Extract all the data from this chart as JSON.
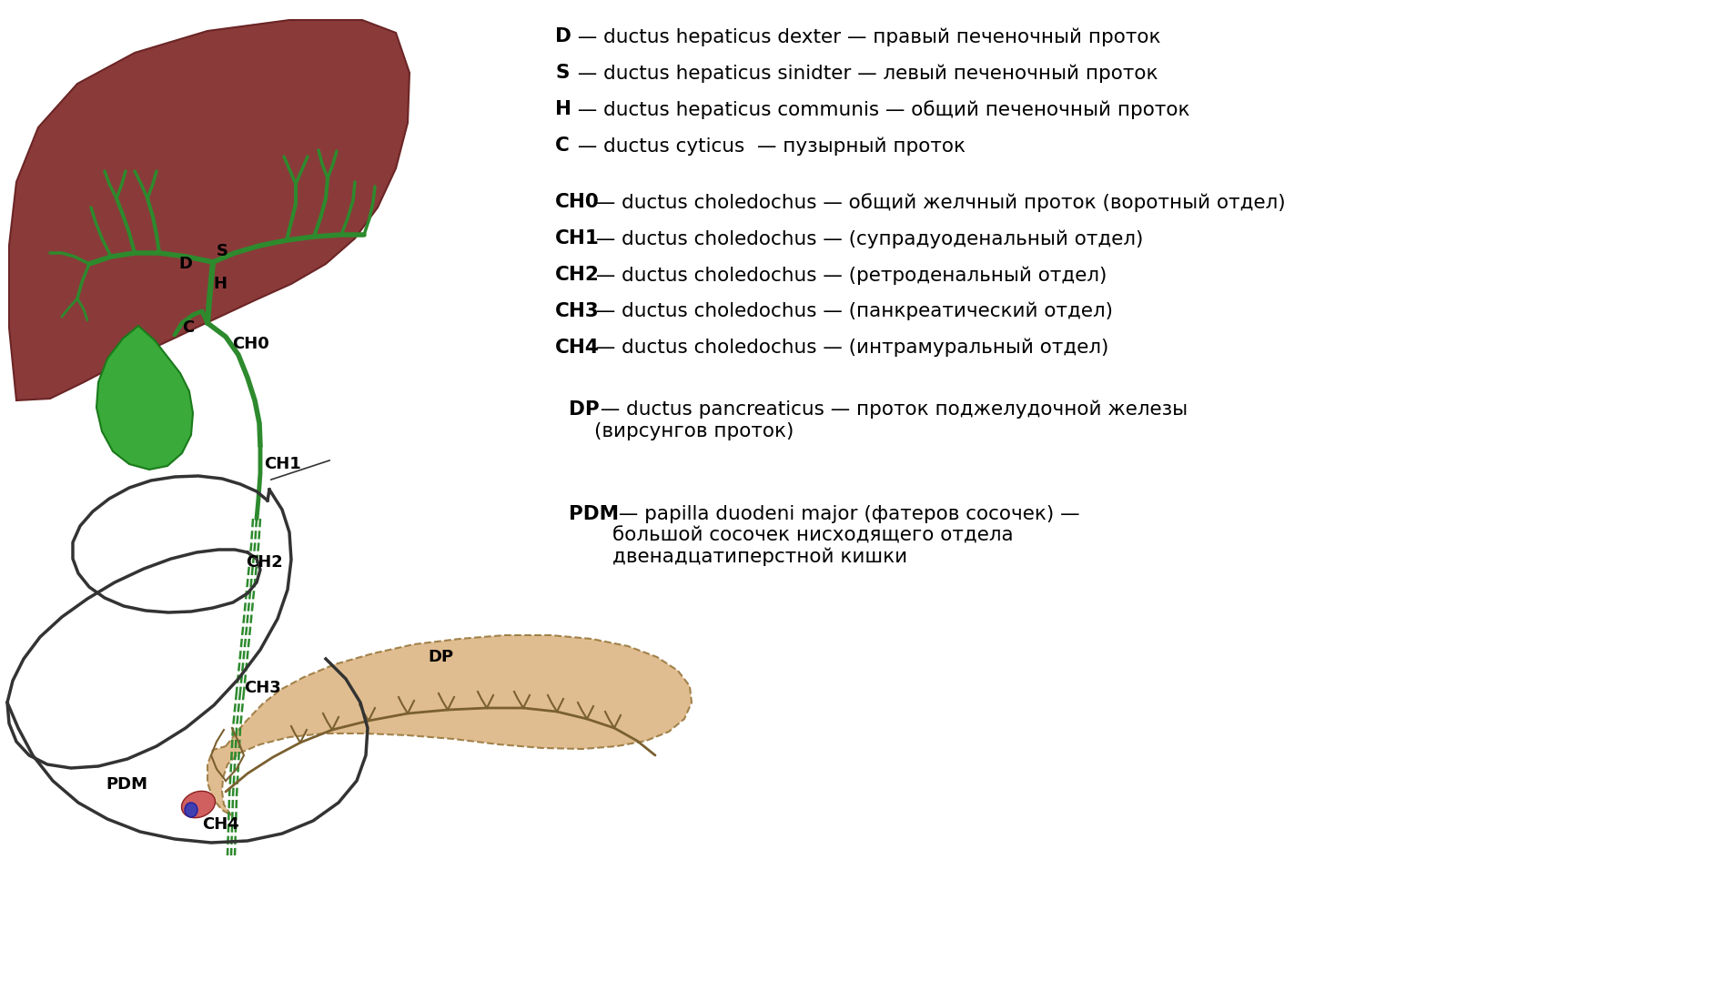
{
  "bg_color": "#ffffff",
  "liver_color": "#8B3A3A",
  "liver_edge": "#6b2525",
  "bile_duct_color": "#2d8a2d",
  "gallbladder_color": "#3aaa3a",
  "gallbladder_edge": "#1a7a1a",
  "pancreas_color": "#DEB887",
  "pancreas_edge": "#9B7A40",
  "pdm_red": "#d06060",
  "pdm_blue": "#4040b0",
  "label_color": "#000000",
  "duod_color": "#333333",
  "legend_lines": [
    {
      "bold": "D",
      "text": " — ductus hepaticus dexter — правый печеночный проток"
    },
    {
      "bold": "S",
      "text": " — ductus hepaticus sinidter — левый печеночный проток"
    },
    {
      "bold": "H",
      "text": " — ductus hepaticus communis — общий печеночный проток"
    },
    {
      "bold": "C",
      "text": " — ductus cyticus  — пузырный проток"
    }
  ],
  "legend_lines2": [
    {
      "bold": "CH0",
      "text": " — ductus choledochus — общий желчный проток (воротный отдел)"
    },
    {
      "bold": "CH1",
      "text": " — ductus choledochus — (супрадуоденальный отдел)"
    },
    {
      "bold": "CH2",
      "text": " — ductus choledochus — (ретроденальный отдел)"
    },
    {
      "bold": "CH3",
      "text": " — ductus choledochus — (панкреатический отдел)"
    },
    {
      "bold": "CH4",
      "text": " — ductus choledochus — (интрамуральный отдел)"
    }
  ],
  "legend_dp_bold": "DP",
  "legend_dp_text": " — ductus pancreaticus — проток поджелудочной железы\n(вирсунгов проток)",
  "legend_pdm_bold": "PDM",
  "legend_pdm_text": " — papilla duodeni major (фатеров сосочек) —\nбольшой сосочек нисходящего отдела\nдвенадцатиперстной кишки"
}
